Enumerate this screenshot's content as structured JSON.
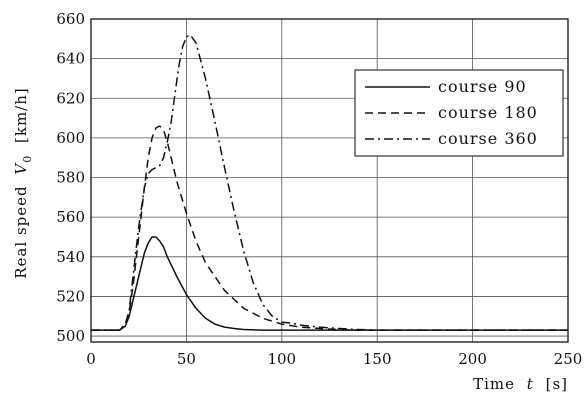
{
  "chart_data": {
    "type": "line",
    "xlabel_text": "Time",
    "xlabel_symbol": "t",
    "xlabel_unit": "[s]",
    "ylabel_text": "Real  speed",
    "ylabel_symbol": "V",
    "ylabel_subscript": "0",
    "ylabel_unit": "[km/h]",
    "xlim": [
      0,
      250
    ],
    "ylim": [
      497,
      660
    ],
    "xticks": [
      0,
      50,
      100,
      150,
      200,
      250
    ],
    "yticks": [
      500,
      520,
      540,
      560,
      580,
      600,
      620,
      640,
      660
    ],
    "grid": true,
    "legend_position": "top-right",
    "series": [
      {
        "name": "course  90",
        "dash": "solid",
        "x": [
          0,
          15,
          18,
          20,
          22,
          25,
          28,
          30,
          32,
          34,
          36,
          38,
          40,
          45,
          50,
          55,
          60,
          65,
          70,
          75,
          80,
          90,
          100,
          120,
          150,
          200,
          250
        ],
        "y": [
          503,
          503,
          505,
          510,
          518,
          530,
          542,
          547,
          550,
          550,
          548,
          545,
          540,
          530,
          521,
          514,
          509,
          506,
          504.5,
          503.8,
          503.3,
          503,
          503,
          503,
          503,
          503,
          503
        ]
      },
      {
        "name": "course  180",
        "dash": "dashed",
        "x": [
          0,
          15,
          18,
          20,
          22,
          25,
          28,
          30,
          32,
          34,
          36,
          38,
          40,
          42,
          45,
          50,
          55,
          60,
          70,
          80,
          90,
          100,
          110,
          120,
          130,
          140,
          150,
          200,
          250
        ],
        "y": [
          503,
          503,
          506,
          512,
          525,
          550,
          575,
          590,
          600,
          605,
          606,
          604,
          598,
          590,
          578,
          562,
          548,
          537,
          523,
          514,
          509,
          506,
          504.5,
          503.8,
          503.3,
          503,
          503,
          503,
          503
        ]
      },
      {
        "name": "course  360",
        "dash": "dashdot",
        "x": [
          0,
          15,
          18,
          20,
          22,
          25,
          28,
          30,
          32,
          34,
          36,
          38,
          40,
          42,
          44,
          46,
          48,
          50,
          52,
          55,
          60,
          65,
          70,
          75,
          80,
          85,
          90,
          95,
          100,
          105,
          110,
          120,
          130,
          140,
          150,
          200,
          250
        ],
        "y": [
          503,
          503,
          506,
          513,
          530,
          555,
          575,
          582,
          584,
          585,
          586,
          590,
          598,
          608,
          622,
          636,
          646,
          651,
          652,
          648,
          630,
          608,
          585,
          563,
          543,
          527,
          516,
          510,
          507,
          506.5,
          505.5,
          504.5,
          503.8,
          503.3,
          503,
          503,
          503
        ]
      }
    ]
  }
}
